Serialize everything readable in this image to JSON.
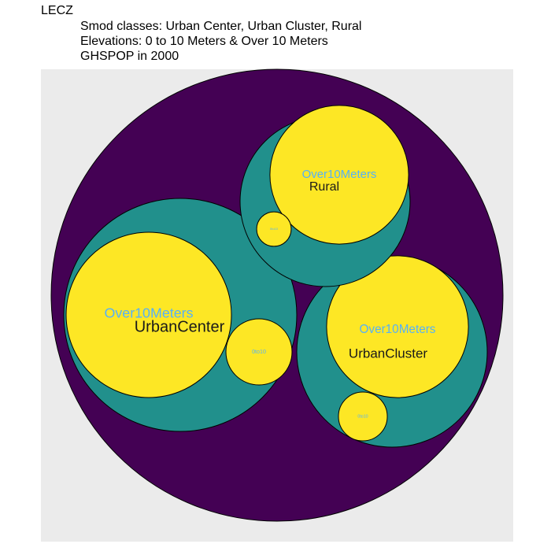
{
  "chart_data": {
    "type": "circlepack",
    "title": "LECZ",
    "subtitle": [
      "Smod classes: Urban Center, Urban Cluster, Rural",
      "Elevations: 0 to 10 Meters & Over 10 Meters",
      "GHSPOP in 2000"
    ],
    "groups": [
      {
        "name": "UrbanCenter",
        "children": [
          {
            "name": "Over10Meters",
            "value": 1100
          },
          {
            "name": "0to10",
            "value": 176
          }
        ]
      },
      {
        "name": "UrbanCluster",
        "children": [
          {
            "name": "Over10Meters",
            "value": 810
          },
          {
            "name": "0to10",
            "value": 96
          }
        ]
      },
      {
        "name": "Rural",
        "children": [
          {
            "name": "Over10Meters",
            "value": 774
          },
          {
            "name": "0to10",
            "value": 48
          }
        ]
      }
    ],
    "colors": {
      "root": "#440154",
      "group": "#21908C",
      "leaf": "#FDE725"
    },
    "label_color": "#56B1F7"
  }
}
